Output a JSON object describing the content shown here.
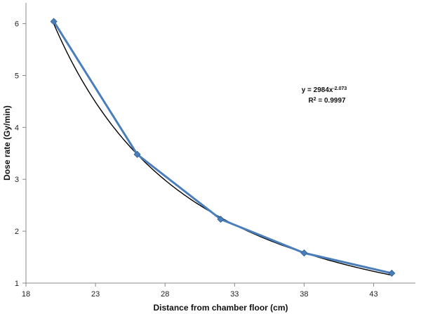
{
  "chart_data": {
    "type": "scatter",
    "title": "",
    "xlabel": "Distance from chamber floor (cm)",
    "ylabel": "Dose rate (Gy/min)",
    "xlim": [
      18,
      46
    ],
    "ylim": [
      1,
      6.4
    ],
    "x_ticks": [
      18,
      23,
      28,
      33,
      38,
      43
    ],
    "y_ticks": [
      1,
      2,
      3,
      4,
      5,
      6
    ],
    "grid": false,
    "series": [
      {
        "x": [
          20,
          26,
          32,
          38,
          44.3
        ],
        "y": [
          6.04,
          3.48,
          2.23,
          1.58,
          1.19
        ],
        "color": "#4a7ebb",
        "marker": "diamond",
        "line": "straight"
      }
    ],
    "trendline": {
      "type": "power",
      "coefficient": 2984,
      "exponent": -2.073,
      "color": "#000000"
    },
    "annotation": {
      "equation": "y = 2984x-2.073",
      "equation_base": "y = 2984x",
      "equation_exponent": "-2.073",
      "r_squared": "R² = 0.9997",
      "r_squared_base": "R",
      "r_squared_sup": "2",
      "r_squared_value": " = 0.9997"
    }
  }
}
